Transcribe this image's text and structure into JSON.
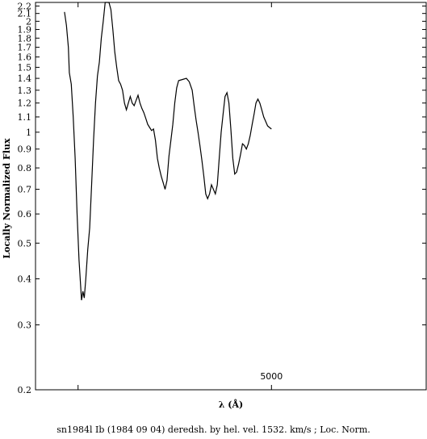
{
  "chart_data": {
    "type": "line",
    "ylabel": "Locally Normalized Flux",
    "xlabel": "λ (Å)",
    "caption": "sn1984l Ib (1984 09 04) deredsh. by hel. vel.  1532. km/s ;  Loc. Norm.",
    "y_scale": "log",
    "ylim": [
      0.2,
      2.25
    ],
    "xlim": [
      3780,
      5800
    ],
    "y_ticks": [
      {
        "value": 0.2,
        "label": "0.2"
      },
      {
        "value": 0.3,
        "label": "0.3"
      },
      {
        "value": 0.4,
        "label": "0.4"
      },
      {
        "value": 0.5,
        "label": "0.5"
      },
      {
        "value": 0.6,
        "label": "0.6"
      },
      {
        "value": 0.7,
        "label": "0.7"
      },
      {
        "value": 0.8,
        "label": "0.8"
      },
      {
        "value": 0.9,
        "label": "0.9"
      },
      {
        "value": 1.0,
        "label": "1"
      },
      {
        "value": 1.1,
        "label": "1.1"
      },
      {
        "value": 1.2,
        "label": "1.2"
      },
      {
        "value": 1.3,
        "label": "1.3"
      },
      {
        "value": 1.4,
        "label": "1.4"
      },
      {
        "value": 1.5,
        "label": "1.5"
      },
      {
        "value": 1.6,
        "label": "1.6"
      },
      {
        "value": 1.7,
        "label": "1.7"
      },
      {
        "value": 1.8,
        "label": "1.8"
      },
      {
        "value": 1.9,
        "label": "1.9"
      },
      {
        "value": 2.0,
        "label": "2"
      },
      {
        "value": 2.1,
        "label": "2.1"
      },
      {
        "value": 2.2,
        "label": "2.2"
      }
    ],
    "x_ticks_labeled": [
      {
        "value": 5000,
        "label": "5000"
      }
    ],
    "x_ticks_minor": [
      4000,
      5000
    ],
    "series": [
      {
        "points": [
          [
            3930,
            2.12
          ],
          [
            3940,
            1.95
          ],
          [
            3950,
            1.7
          ],
          [
            3955,
            1.45
          ],
          [
            3965,
            1.35
          ],
          [
            3975,
            1.1
          ],
          [
            3985,
            0.85
          ],
          [
            3995,
            0.6
          ],
          [
            4005,
            0.45
          ],
          [
            4018,
            0.35
          ],
          [
            4025,
            0.37
          ],
          [
            4032,
            0.355
          ],
          [
            4040,
            0.4
          ],
          [
            4050,
            0.48
          ],
          [
            4060,
            0.55
          ],
          [
            4070,
            0.72
          ],
          [
            4080,
            0.95
          ],
          [
            4090,
            1.2
          ],
          [
            4100,
            1.42
          ],
          [
            4110,
            1.55
          ],
          [
            4120,
            1.8
          ],
          [
            4130,
            2.0
          ],
          [
            4140,
            2.25
          ],
          [
            4160,
            2.25
          ],
          [
            4170,
            2.15
          ],
          [
            4180,
            1.9
          ],
          [
            4190,
            1.65
          ],
          [
            4200,
            1.5
          ],
          [
            4210,
            1.38
          ],
          [
            4220,
            1.35
          ],
          [
            4230,
            1.3
          ],
          [
            4240,
            1.2
          ],
          [
            4250,
            1.15
          ],
          [
            4260,
            1.2
          ],
          [
            4270,
            1.25
          ],
          [
            4280,
            1.2
          ],
          [
            4290,
            1.18
          ],
          [
            4300,
            1.22
          ],
          [
            4310,
            1.26
          ],
          [
            4320,
            1.2
          ],
          [
            4330,
            1.16
          ],
          [
            4340,
            1.13
          ],
          [
            4350,
            1.09
          ],
          [
            4360,
            1.05
          ],
          [
            4370,
            1.03
          ],
          [
            4380,
            1.01
          ],
          [
            4390,
            1.02
          ],
          [
            4400,
            0.95
          ],
          [
            4410,
            0.85
          ],
          [
            4420,
            0.8
          ],
          [
            4430,
            0.76
          ],
          [
            4440,
            0.73
          ],
          [
            4450,
            0.7
          ],
          [
            4460,
            0.74
          ],
          [
            4470,
            0.86
          ],
          [
            4480,
            0.95
          ],
          [
            4490,
            1.05
          ],
          [
            4500,
            1.2
          ],
          [
            4510,
            1.32
          ],
          [
            4520,
            1.38
          ],
          [
            4540,
            1.39
          ],
          [
            4560,
            1.4
          ],
          [
            4575,
            1.37
          ],
          [
            4590,
            1.3
          ],
          [
            4600,
            1.18
          ],
          [
            4610,
            1.08
          ],
          [
            4620,
            1.0
          ],
          [
            4630,
            0.92
          ],
          [
            4640,
            0.84
          ],
          [
            4650,
            0.76
          ],
          [
            4660,
            0.68
          ],
          [
            4670,
            0.66
          ],
          [
            4680,
            0.68
          ],
          [
            4690,
            0.72
          ],
          [
            4700,
            0.7
          ],
          [
            4710,
            0.68
          ],
          [
            4720,
            0.72
          ],
          [
            4730,
            0.85
          ],
          [
            4740,
            1.0
          ],
          [
            4750,
            1.12
          ],
          [
            4760,
            1.25
          ],
          [
            4770,
            1.28
          ],
          [
            4780,
            1.2
          ],
          [
            4790,
            1.02
          ],
          [
            4800,
            0.85
          ],
          [
            4810,
            0.77
          ],
          [
            4820,
            0.78
          ],
          [
            4830,
            0.82
          ],
          [
            4840,
            0.87
          ],
          [
            4850,
            0.93
          ],
          [
            4860,
            0.92
          ],
          [
            4870,
            0.9
          ],
          [
            4880,
            0.93
          ],
          [
            4890,
            0.98
          ],
          [
            4900,
            1.05
          ],
          [
            4910,
            1.12
          ],
          [
            4920,
            1.2
          ],
          [
            4930,
            1.23
          ],
          [
            4940,
            1.2
          ],
          [
            4950,
            1.15
          ],
          [
            4960,
            1.1
          ],
          [
            4970,
            1.07
          ],
          [
            4980,
            1.04
          ],
          [
            4990,
            1.03
          ],
          [
            5000,
            1.02
          ]
        ]
      }
    ]
  }
}
